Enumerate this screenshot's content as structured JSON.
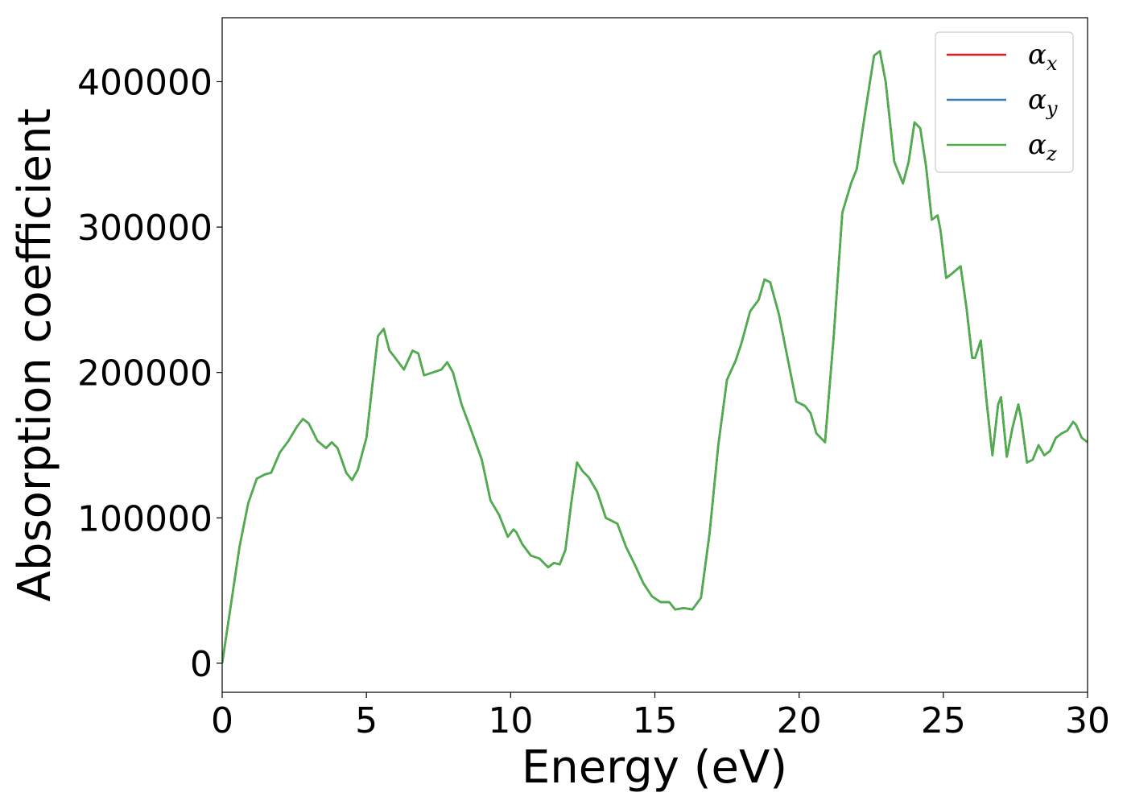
{
  "chart_data": {
    "type": "line",
    "xlabel": "Energy (eV)",
    "ylabel": "Absorption coefficient",
    "xlim": [
      0,
      30
    ],
    "ylim": [
      -20000,
      444000
    ],
    "xticks": [
      0,
      5,
      10,
      15,
      20,
      25,
      30
    ],
    "yticks": [
      0,
      100000,
      200000,
      300000,
      400000
    ],
    "grid": false,
    "legend_position": "top-right",
    "legend": [
      {
        "symbol": "α",
        "subscript": "x"
      },
      {
        "symbol": "α",
        "subscript": "y"
      },
      {
        "symbol": "α",
        "subscript": "z"
      }
    ],
    "colors": [
      "#e41a1c",
      "#377eb8",
      "#4daf4a"
    ],
    "x": [
      0,
      0.3,
      0.6,
      0.9,
      1.2,
      1.5,
      1.7,
      2.0,
      2.3,
      2.6,
      2.8,
      3.0,
      3.3,
      3.6,
      3.8,
      4.0,
      4.3,
      4.5,
      4.7,
      5.0,
      5.2,
      5.4,
      5.6,
      5.8,
      6.0,
      6.3,
      6.6,
      6.8,
      7.0,
      7.3,
      7.6,
      7.8,
      8.0,
      8.3,
      8.6,
      9.0,
      9.3,
      9.6,
      9.9,
      10.1,
      10.2,
      10.4,
      10.7,
      11.0,
      11.3,
      11.5,
      11.7,
      11.9,
      12.1,
      12.3,
      12.5,
      12.7,
      13.0,
      13.3,
      13.7,
      14.0,
      14.3,
      14.6,
      14.9,
      15.2,
      15.5,
      15.7,
      16.0,
      16.3,
      16.6,
      16.9,
      17.2,
      17.5,
      17.8,
      18.0,
      18.3,
      18.6,
      18.8,
      19.0,
      19.3,
      19.6,
      19.9,
      20.2,
      20.4,
      20.6,
      20.9,
      21.2,
      21.5,
      21.8,
      22.0,
      22.3,
      22.6,
      22.8,
      23.0,
      23.3,
      23.6,
      23.8,
      24.0,
      24.2,
      24.4,
      24.6,
      24.8,
      24.9,
      25.1,
      25.3,
      25.6,
      25.8,
      26.0,
      26.1,
      26.3,
      26.5,
      26.7,
      26.9,
      27.0,
      27.2,
      27.4,
      27.6,
      27.7,
      27.9,
      28.1,
      28.3,
      28.5,
      28.7,
      28.9,
      29.1,
      29.3,
      29.5,
      29.6,
      29.8,
      30.0
    ],
    "series": [
      {
        "name": "α_x",
        "values": [
          0,
          40000,
          80000,
          110000,
          127000,
          130000,
          131000,
          145000,
          153000,
          163000,
          168000,
          165000,
          153000,
          148000,
          152000,
          148000,
          131000,
          126000,
          133000,
          155000,
          190000,
          225000,
          230000,
          215000,
          210000,
          202000,
          215000,
          213000,
          198000,
          200000,
          202000,
          207000,
          200000,
          178000,
          162000,
          140000,
          112000,
          102000,
          87000,
          92000,
          90000,
          82000,
          74000,
          72000,
          66000,
          69000,
          68000,
          78000,
          110000,
          138000,
          132000,
          128000,
          118000,
          100000,
          96000,
          80000,
          68000,
          55000,
          46000,
          42000,
          42000,
          37000,
          38000,
          37000,
          45000,
          90000,
          150000,
          195000,
          208000,
          220000,
          242000,
          250000,
          264000,
          262000,
          240000,
          210000,
          180000,
          177000,
          172000,
          158000,
          152000,
          225000,
          310000,
          330000,
          340000,
          380000,
          418000,
          421000,
          400000,
          345000,
          330000,
          345000,
          372000,
          368000,
          342000,
          305000,
          308000,
          298000,
          265000,
          268000,
          273000,
          245000,
          210000,
          210000,
          222000,
          180000,
          143000,
          178000,
          183000,
          142000,
          162000,
          178000,
          168000,
          138000,
          140000,
          150000,
          143000,
          146000,
          155000,
          158000,
          160000,
          166000,
          164000,
          155000,
          152000
        ]
      },
      {
        "name": "α_y",
        "values": [
          0,
          40000,
          80000,
          110000,
          127000,
          130000,
          131000,
          145000,
          153000,
          163000,
          168000,
          165000,
          153000,
          148000,
          152000,
          148000,
          131000,
          126000,
          133000,
          155000,
          190000,
          225000,
          230000,
          215000,
          210000,
          202000,
          215000,
          213000,
          198000,
          200000,
          202000,
          207000,
          200000,
          178000,
          162000,
          140000,
          112000,
          102000,
          87000,
          92000,
          90000,
          82000,
          74000,
          72000,
          66000,
          69000,
          68000,
          78000,
          110000,
          138000,
          132000,
          128000,
          118000,
          100000,
          96000,
          80000,
          68000,
          55000,
          46000,
          42000,
          42000,
          37000,
          38000,
          37000,
          45000,
          90000,
          150000,
          195000,
          208000,
          220000,
          242000,
          250000,
          264000,
          262000,
          240000,
          210000,
          180000,
          177000,
          172000,
          158000,
          152000,
          225000,
          310000,
          330000,
          340000,
          380000,
          418000,
          421000,
          400000,
          345000,
          330000,
          345000,
          372000,
          368000,
          342000,
          305000,
          308000,
          298000,
          265000,
          268000,
          273000,
          245000,
          210000,
          210000,
          222000,
          180000,
          143000,
          178000,
          183000,
          142000,
          162000,
          178000,
          168000,
          138000,
          140000,
          150000,
          143000,
          146000,
          155000,
          158000,
          160000,
          166000,
          164000,
          155000,
          152000
        ]
      },
      {
        "name": "α_z",
        "values": [
          0,
          40000,
          80000,
          110000,
          127000,
          130000,
          131000,
          145000,
          153000,
          163000,
          168000,
          165000,
          153000,
          148000,
          152000,
          148000,
          131000,
          126000,
          133000,
          155000,
          190000,
          225000,
          230000,
          215000,
          210000,
          202000,
          215000,
          213000,
          198000,
          200000,
          202000,
          207000,
          200000,
          178000,
          162000,
          140000,
          112000,
          102000,
          87000,
          92000,
          90000,
          82000,
          74000,
          72000,
          66000,
          69000,
          68000,
          78000,
          110000,
          138000,
          132000,
          128000,
          118000,
          100000,
          96000,
          80000,
          68000,
          55000,
          46000,
          42000,
          42000,
          37000,
          38000,
          37000,
          45000,
          90000,
          150000,
          195000,
          208000,
          220000,
          242000,
          250000,
          264000,
          262000,
          240000,
          210000,
          180000,
          177000,
          172000,
          158000,
          152000,
          225000,
          310000,
          330000,
          340000,
          380000,
          418000,
          421000,
          400000,
          345000,
          330000,
          345000,
          372000,
          368000,
          342000,
          305000,
          308000,
          298000,
          265000,
          268000,
          273000,
          245000,
          210000,
          210000,
          222000,
          180000,
          143000,
          178000,
          183000,
          142000,
          162000,
          178000,
          168000,
          138000,
          140000,
          150000,
          143000,
          146000,
          155000,
          158000,
          160000,
          166000,
          164000,
          155000,
          152000
        ]
      }
    ]
  }
}
